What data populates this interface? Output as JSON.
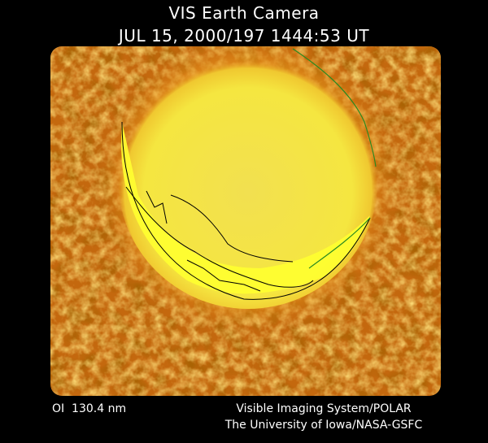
{
  "header": {
    "title": "VIS Earth Camera",
    "subtitle": "JUL 15, 2000/197 1444:53 UT"
  },
  "footer": {
    "filter": "OI  130.4 nm",
    "instrument": "Visible Imaging System/POLAR",
    "institution": "The University of Iowa/NASA-GSFC"
  }
}
